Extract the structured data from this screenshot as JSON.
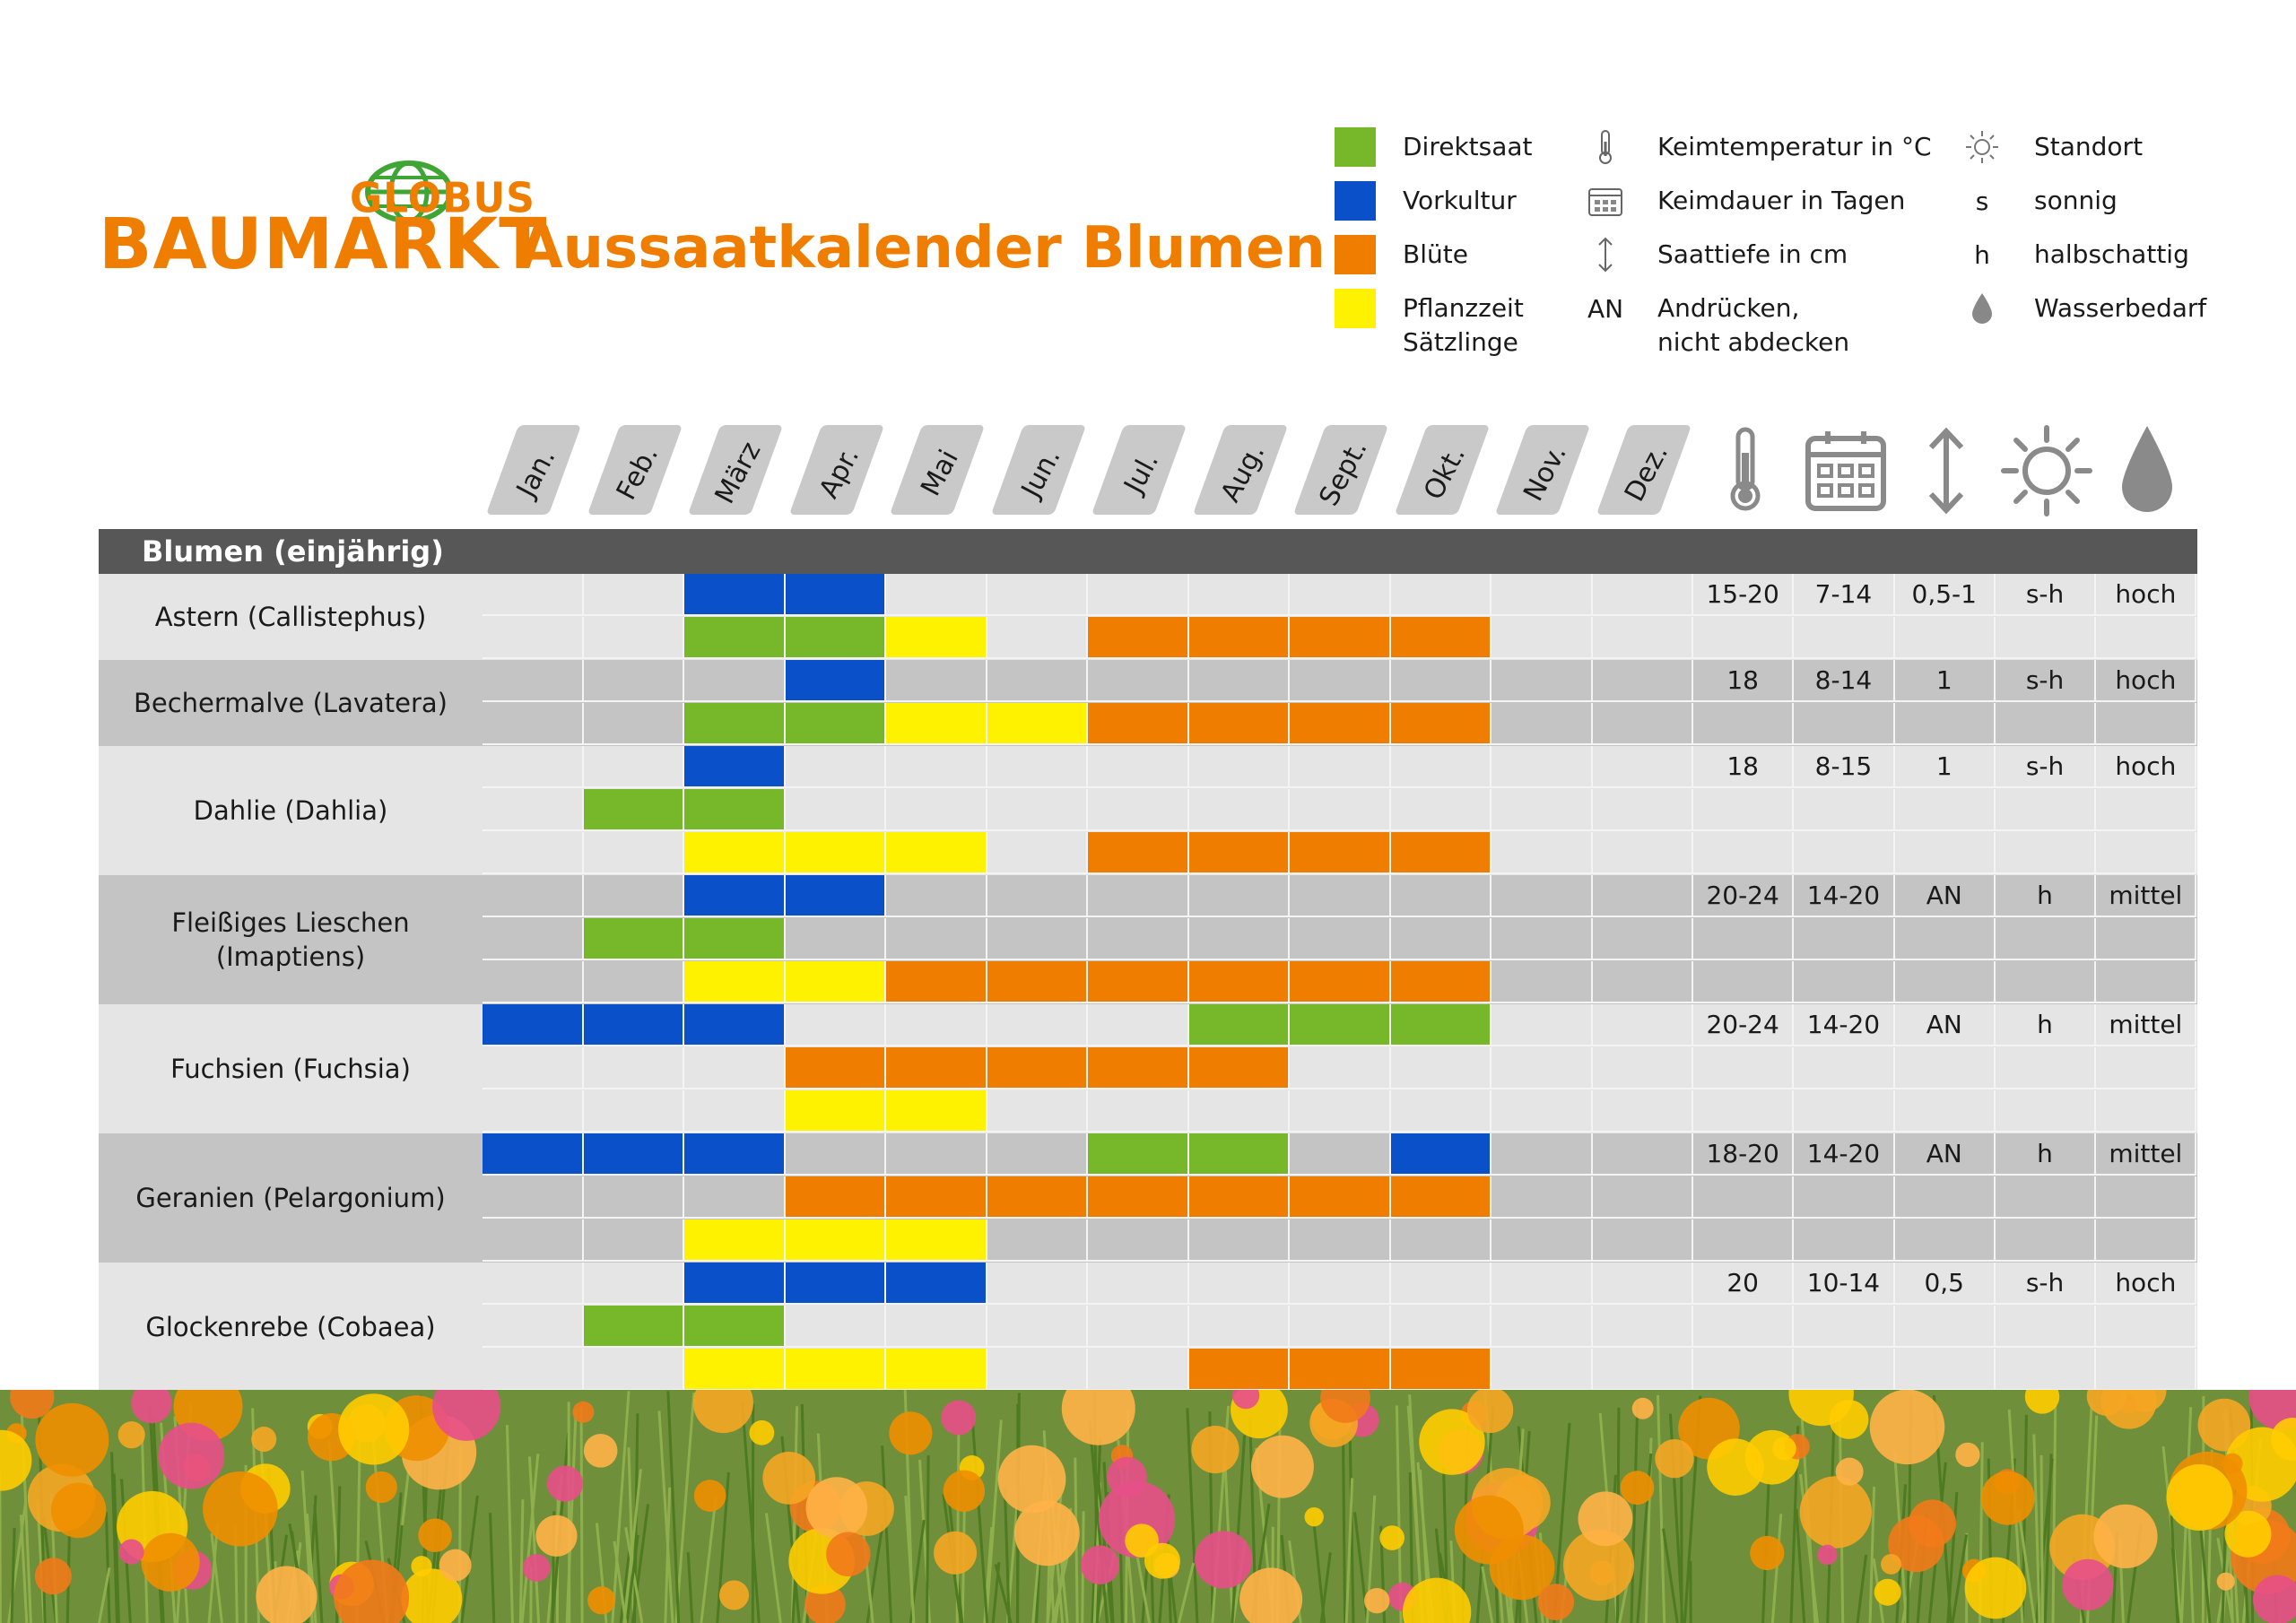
{
  "logo": {
    "brand_top": "GLOBUS",
    "brand_main": "BAUMARKT"
  },
  "title": "Aussaatkalender Blumen",
  "colors": {
    "direktsaat": "#76b82a",
    "vorkultur": "#0a50c8",
    "bluete": "#ef7d00",
    "pflanzzeit": "#fff200",
    "header_bar": "#575757",
    "accent": "#ef7d00"
  },
  "legend": {
    "direktsaat": "Direktsaat",
    "vorkultur": "Vorkultur",
    "bluete": "Blüte",
    "pflanzzeit_1": "Pflanzzeit",
    "pflanzzeit_2": "Sätzlinge",
    "keimtemperatur": "Keimtemperatur in °C",
    "keimdauer": "Keimdauer in Tagen",
    "saattiefe": "Saattiefe in cm",
    "an_key": "AN",
    "an_text_1": "Andrücken,",
    "an_text_2": "nicht abdecken",
    "standort": "Standort",
    "s_key": "s",
    "s_text": "sonnig",
    "h_key": "h",
    "h_text": "halbschattig",
    "wasserbedarf": "Wasserbedarf",
    "icons": [
      "thermometer-icon",
      "calendar-icon",
      "depth-arrow-icon",
      "sun-icon",
      "water-drop-icon"
    ]
  },
  "months": [
    "Jan.",
    "Feb.",
    "März",
    "Apr.",
    "Mai",
    "Jun.",
    "Jul.",
    "Aug.",
    "Sept.",
    "Okt.",
    "Nov.",
    "Dez."
  ],
  "section_title": "Blumen (einjährig)",
  "plants": [
    {
      "name": "Astern (Callistephus)",
      "shade": "light",
      "rows": [
        {
          "cells": [
            "",
            "",
            "B",
            "B",
            "",
            "",
            "",
            "",
            "",
            "",
            "",
            ""
          ],
          "data": [
            "15-20",
            "7-14",
            "0,5-1",
            "s-h",
            "hoch"
          ]
        },
        {
          "cells": [
            "",
            "",
            "G",
            "G",
            "Y",
            "",
            "O",
            "O",
            "O",
            "O",
            "",
            ""
          ],
          "data": [
            "",
            "",
            "",
            "",
            ""
          ]
        }
      ]
    },
    {
      "name": "Bechermalve (Lavatera)",
      "shade": "dark",
      "rows": [
        {
          "cells": [
            "",
            "",
            "",
            "B",
            "",
            "",
            "",
            "",
            "",
            "",
            "",
            ""
          ],
          "data": [
            "18",
            "8-14",
            "1",
            "s-h",
            "hoch"
          ]
        },
        {
          "cells": [
            "",
            "",
            "G",
            "G",
            "Y",
            "Y",
            "O",
            "O",
            "O",
            "O",
            "",
            ""
          ],
          "data": [
            "",
            "",
            "",
            "",
            ""
          ]
        }
      ]
    },
    {
      "name": "Dahlie (Dahlia)",
      "shade": "light",
      "rows": [
        {
          "cells": [
            "",
            "",
            "B",
            "",
            "",
            "",
            "",
            "",
            "",
            "",
            "",
            ""
          ],
          "data": [
            "18",
            "8-15",
            "1",
            "s-h",
            "hoch"
          ]
        },
        {
          "cells": [
            "",
            "G",
            "G",
            "",
            "",
            "",
            "",
            "",
            "",
            "",
            "",
            ""
          ],
          "data": [
            "",
            "",
            "",
            "",
            ""
          ]
        },
        {
          "cells": [
            "",
            "",
            "Y",
            "Y",
            "Y",
            "",
            "O",
            "O",
            "O",
            "O",
            "",
            ""
          ],
          "data": [
            "",
            "",
            "",
            "",
            ""
          ]
        }
      ]
    },
    {
      "name": "Fleißiges Lieschen (Imaptiens)",
      "name_1": "Fleißiges Lieschen",
      "name_2": "(Imaptiens)",
      "shade": "dark",
      "rows": [
        {
          "cells": [
            "",
            "",
            "B",
            "B",
            "",
            "",
            "",
            "",
            "",
            "",
            "",
            ""
          ],
          "data": [
            "20-24",
            "14-20",
            "AN",
            "h",
            "mittel"
          ]
        },
        {
          "cells": [
            "",
            "G",
            "G",
            "",
            "",
            "",
            "",
            "",
            "",
            "",
            "",
            ""
          ],
          "data": [
            "",
            "",
            "",
            "",
            ""
          ]
        },
        {
          "cells": [
            "",
            "",
            "Y",
            "Y",
            "O",
            "O",
            "O",
            "O",
            "O",
            "O",
            "",
            ""
          ],
          "data": [
            "",
            "",
            "",
            "",
            ""
          ]
        }
      ]
    },
    {
      "name": "Fuchsien (Fuchsia)",
      "shade": "light",
      "rows": [
        {
          "cells": [
            "B",
            "B",
            "B",
            "",
            "",
            "",
            "",
            "G",
            "G",
            "G",
            "",
            ""
          ],
          "data": [
            "20-24",
            "14-20",
            "AN",
            "h",
            "mittel"
          ]
        },
        {
          "cells": [
            "",
            "",
            "",
            "O",
            "O",
            "O",
            "O",
            "O",
            "",
            "",
            "",
            ""
          ],
          "data": [
            "",
            "",
            "",
            "",
            ""
          ]
        },
        {
          "cells": [
            "",
            "",
            "",
            "Y",
            "Y",
            "",
            "",
            "",
            "",
            "",
            "",
            ""
          ],
          "data": [
            "",
            "",
            "",
            "",
            ""
          ]
        }
      ]
    },
    {
      "name": "Geranien (Pelargonium)",
      "shade": "dark",
      "rows": [
        {
          "cells": [
            "B",
            "B",
            "B",
            "",
            "",
            "",
            "G",
            "G",
            "",
            "B",
            "",
            ""
          ],
          "data": [
            "18-20",
            "14-20",
            "AN",
            "h",
            "mittel"
          ]
        },
        {
          "cells": [
            "",
            "",
            "",
            "O",
            "O",
            "O",
            "O",
            "O",
            "O",
            "O",
            "",
            ""
          ],
          "data": [
            "",
            "",
            "",
            "",
            ""
          ]
        },
        {
          "cells": [
            "",
            "",
            "Y",
            "Y",
            "Y",
            "",
            "",
            "",
            "",
            "",
            "",
            ""
          ],
          "data": [
            "",
            "",
            "",
            "",
            ""
          ]
        }
      ]
    },
    {
      "name": "Glockenrebe (Cobaea)",
      "shade": "light",
      "rows": [
        {
          "cells": [
            "",
            "",
            "B",
            "B",
            "B",
            "",
            "",
            "",
            "",
            "",
            "",
            ""
          ],
          "data": [
            "20",
            "10-14",
            "0,5",
            "s-h",
            "hoch"
          ]
        },
        {
          "cells": [
            "",
            "G",
            "G",
            "",
            "",
            "",
            "",
            "",
            "",
            "",
            "",
            ""
          ],
          "data": [
            "",
            "",
            "",
            "",
            ""
          ]
        },
        {
          "cells": [
            "",
            "",
            "Y",
            "Y",
            "Y",
            "",
            "",
            "O",
            "O",
            "O",
            "",
            ""
          ],
          "data": [
            "",
            "",
            "",
            "",
            ""
          ]
        }
      ]
    }
  ]
}
